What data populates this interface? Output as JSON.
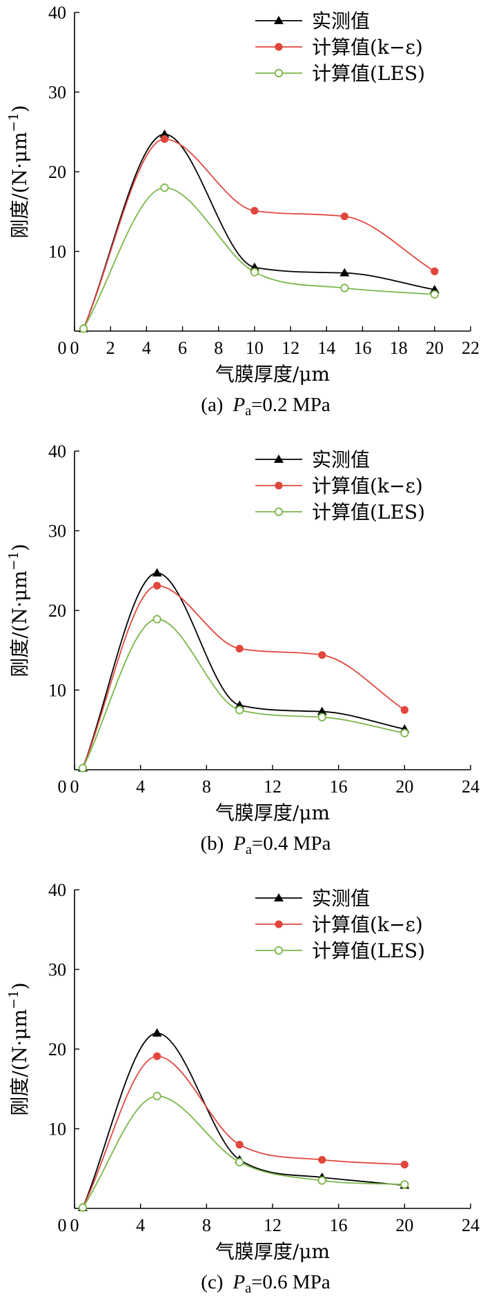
{
  "chart_data": [
    {
      "type": "line",
      "caption": {
        "prefix": "(a)",
        "var": "P",
        "sub": "a",
        "rest": "=0.2 MPa"
      },
      "xlabel": "气膜厚度/μm",
      "ylabel": "刚度/(N·μm",
      "ylabel_sup": "−1",
      "ylabel_close": ")",
      "xlim": [
        0,
        22
      ],
      "ylim": [
        0,
        40
      ],
      "x_ticks": [
        "0",
        "2",
        "4",
        "6",
        "8",
        "10",
        "12",
        "14",
        "16",
        "18",
        "20",
        "22"
      ],
      "y_ticks": [
        "10",
        "20",
        "30",
        "40"
      ],
      "legend_position": "top-right",
      "series": [
        {
          "name": "实测值",
          "color": "#000000",
          "marker": "triangle",
          "x": [
            0.5,
            5,
            10,
            15,
            20
          ],
          "y": [
            0.3,
            24.7,
            8.0,
            7.3,
            5.2
          ]
        },
        {
          "name": "计算值(k−ε)",
          "color": "#e0463c",
          "marker": "circle",
          "x": [
            0.5,
            5,
            10,
            15,
            20
          ],
          "y": [
            0.3,
            24.1,
            15.1,
            14.4,
            7.5
          ]
        },
        {
          "name": "计算值(LES)",
          "color": "#7ab648",
          "marker": "open-circle",
          "x": [
            0.5,
            5,
            10,
            15,
            20
          ],
          "y": [
            0.3,
            18.0,
            7.4,
            5.4,
            4.6
          ]
        }
      ]
    },
    {
      "type": "line",
      "caption": {
        "prefix": "(b)",
        "var": "P",
        "sub": "a",
        "rest": "=0.4 MPa"
      },
      "xlabel": "气膜厚度/μm",
      "ylabel": "刚度/(N·μm",
      "ylabel_sup": "−1",
      "ylabel_close": ")",
      "xlim": [
        0,
        24
      ],
      "ylim": [
        0,
        40
      ],
      "x_ticks": [
        "0",
        "4",
        "8",
        "12",
        "16",
        "20",
        "24"
      ],
      "y_ticks": [
        "10",
        "20",
        "30",
        "40"
      ],
      "legend_position": "top-right",
      "series": [
        {
          "name": "实测值",
          "color": "#000000",
          "marker": "triangle",
          "x": [
            0.5,
            5,
            10,
            15,
            20
          ],
          "y": [
            0.2,
            24.7,
            8.1,
            7.3,
            5.1
          ]
        },
        {
          "name": "计算值(k−ε)",
          "color": "#e0463c",
          "marker": "circle",
          "x": [
            0.5,
            5,
            10,
            15,
            20
          ],
          "y": [
            0.2,
            23.1,
            15.2,
            14.4,
            7.5
          ]
        },
        {
          "name": "计算值(LES)",
          "color": "#7ab648",
          "marker": "open-circle",
          "x": [
            0.5,
            5,
            10,
            15,
            20
          ],
          "y": [
            0.2,
            18.9,
            7.5,
            6.6,
            4.6
          ]
        }
      ]
    },
    {
      "type": "line",
      "caption": {
        "prefix": "(c)",
        "var": "P",
        "sub": "a",
        "rest": "=0.6 MPa"
      },
      "xlabel": "气膜厚度/μm",
      "ylabel": "刚度/(N·μm",
      "ylabel_sup": "−1",
      "ylabel_close": ")",
      "xlim": [
        0,
        24
      ],
      "ylim": [
        0,
        40
      ],
      "x_ticks": [
        "0",
        "4",
        "8",
        "12",
        "16",
        "20",
        "24"
      ],
      "y_ticks": [
        "10",
        "20",
        "30",
        "40"
      ],
      "legend_position": "top-right",
      "series": [
        {
          "name": "实测值",
          "color": "#000000",
          "marker": "triangle",
          "x": [
            0.5,
            5,
            10,
            15,
            20
          ],
          "y": [
            0.1,
            22.0,
            6.1,
            3.9,
            2.9
          ]
        },
        {
          "name": "计算值(k−ε)",
          "color": "#e0463c",
          "marker": "circle",
          "x": [
            0.5,
            5,
            10,
            15,
            20
          ],
          "y": [
            0.1,
            19.1,
            8.0,
            6.1,
            5.5
          ]
        },
        {
          "name": "计算值(LES)",
          "color": "#7ab648",
          "marker": "open-circle",
          "x": [
            0.5,
            5,
            10,
            15,
            20
          ],
          "y": [
            0.1,
            14.1,
            5.8,
            3.5,
            3.0
          ]
        }
      ]
    }
  ]
}
